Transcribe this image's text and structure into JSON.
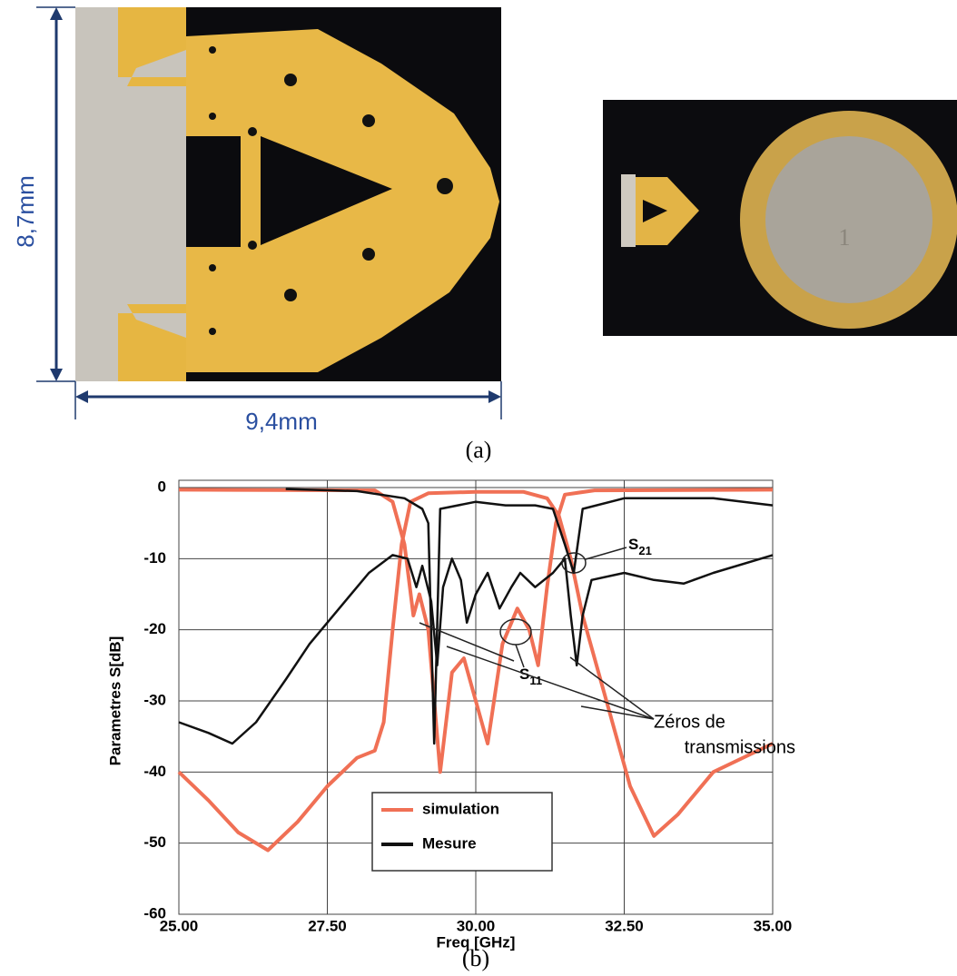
{
  "figure": {
    "panel_a": {
      "height_label": "8,7mm",
      "width_label": "9,4mm",
      "caption": "(a)"
    },
    "panel_b_caption": "(b)"
  },
  "chart_data": {
    "type": "line",
    "xlabel": "Freq [GHz]",
    "ylabel": "Parametres S[dB]",
    "xlim": [
      25,
      35
    ],
    "ylim": [
      -60,
      0
    ],
    "xticks": [
      {
        "value": 25,
        "label": "25.00"
      },
      {
        "value": 27.5,
        "label": "27.50"
      },
      {
        "value": 30,
        "label": "30.00"
      },
      {
        "value": 32.5,
        "label": "32.50"
      },
      {
        "value": 35,
        "label": "35.00"
      }
    ],
    "yticks": [
      0,
      -10,
      -20,
      -30,
      -40,
      -50,
      -60
    ],
    "grid": true,
    "legend": [
      {
        "name": "simulation",
        "color": "#f07055"
      },
      {
        "name": "Mesure",
        "color": "#111111"
      }
    ],
    "series": [
      {
        "color": "#f07055",
        "x": [
          25,
          28.3,
          28.6,
          28.8,
          28.95,
          29.05,
          29.2,
          29.4,
          29.6,
          29.8,
          30.0,
          30.2,
          30.45,
          30.7,
          30.9,
          31.05,
          31.2,
          31.35,
          31.5,
          32,
          35
        ],
        "values": [
          -0.3,
          -0.4,
          -2,
          -8,
          -18,
          -15,
          -20,
          -40,
          -26,
          -24,
          -30,
          -36,
          -22,
          -17,
          -20,
          -25,
          -14,
          -5,
          -1,
          -0.4,
          -0.3
        ]
      },
      {
        "color": "#f07055",
        "x": [
          25,
          25.5,
          26,
          26.5,
          27,
          27.5,
          28,
          28.3,
          28.45,
          28.6,
          28.75,
          28.9,
          29.2,
          30,
          30.8,
          31.2,
          31.4,
          31.6,
          31.8,
          32.2,
          32.6,
          33,
          33.4,
          34,
          35
        ],
        "values": [
          -40,
          -44,
          -48.5,
          -51,
          -47,
          -42,
          -38,
          -37,
          -33,
          -20,
          -8,
          -2,
          -0.8,
          -0.6,
          -0.6,
          -1.5,
          -4,
          -10,
          -18,
          -30,
          -42,
          -49,
          -46,
          -40,
          -36
        ]
      },
      {
        "color": "#111111",
        "x": [
          26.8,
          28,
          28.8,
          29.1,
          29.2,
          29.3,
          29.4,
          30,
          30.5,
          31,
          31.3,
          31.5,
          31.65,
          31.8,
          32.5,
          34,
          35
        ],
        "values": [
          -0.2,
          -0.5,
          -1.5,
          -3,
          -5,
          -36,
          -3,
          -2,
          -2.5,
          -2.5,
          -3,
          -8,
          -12,
          -3,
          -1.5,
          -1.5,
          -2.5
        ]
      },
      {
        "color": "#111111",
        "x": [
          25,
          25.5,
          25.9,
          26.3,
          26.8,
          27.2,
          27.8,
          28.2,
          28.6,
          28.85,
          29.0,
          29.1,
          29.25,
          29.35,
          29.45,
          29.6,
          29.75,
          29.85,
          30,
          30.2,
          30.4,
          30.6,
          30.75,
          31.0,
          31.3,
          31.5,
          31.6,
          31.7,
          31.8,
          31.95,
          32.5,
          33,
          33.5,
          34,
          35
        ],
        "values": [
          -33,
          -34.5,
          -36,
          -33,
          -27,
          -22,
          -16,
          -12,
          -9.5,
          -10,
          -14,
          -11,
          -16,
          -25,
          -14,
          -10,
          -13,
          -19,
          -15,
          -12,
          -17,
          -14,
          -12,
          -14,
          -12,
          -10,
          -18,
          -25,
          -18,
          -13,
          -12,
          -13,
          -13.5,
          -12,
          -9.5
        ]
      }
    ],
    "annotations": {
      "s21": {
        "text": "S",
        "sub": "21"
      },
      "s11": {
        "text": "S",
        "sub": "11"
      },
      "zeros": [
        "Zéros de",
        "transmissions"
      ]
    }
  }
}
